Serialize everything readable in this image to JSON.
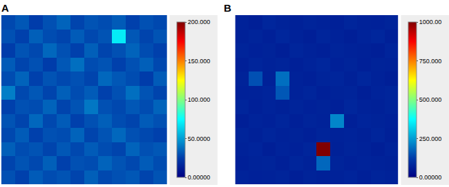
{
  "chart_data": [
    {
      "type": "heatmap",
      "title": "A",
      "tick_labels": false,
      "colorbar_range": [
        0,
        200
      ],
      "colorbar_ticks": [
        {
          "value": 0,
          "label": "0.00000"
        },
        {
          "value": 50,
          "label": "50.0000"
        },
        {
          "value": 100,
          "label": "100.000"
        },
        {
          "value": 150,
          "label": "150.000"
        },
        {
          "value": 200,
          "label": "200.000"
        }
      ],
      "cells": [
        [
          28,
          32,
          25,
          30,
          35,
          27,
          31,
          29,
          33,
          26,
          30,
          28
        ],
        [
          30,
          26,
          34,
          29,
          27,
          33,
          28,
          31,
          70,
          32,
          27,
          31
        ],
        [
          25,
          31,
          28,
          36,
          30,
          26,
          34,
          27,
          30,
          35,
          29,
          26
        ],
        [
          33,
          27,
          30,
          25,
          32,
          38,
          29,
          31,
          26,
          30,
          34,
          28
        ],
        [
          29,
          35,
          26,
          31,
          28,
          30,
          27,
          36,
          32,
          29,
          25,
          33
        ],
        [
          42,
          28,
          32,
          27,
          34,
          29,
          33,
          26,
          30,
          38,
          31,
          27
        ],
        [
          26,
          30,
          29,
          35,
          27,
          31,
          40,
          30,
          28,
          32,
          29,
          35
        ],
        [
          31,
          27,
          36,
          28,
          33,
          26,
          30,
          34,
          29,
          27,
          33,
          30
        ],
        [
          28,
          33,
          26,
          30,
          29,
          35,
          27,
          31,
          36,
          30,
          28,
          26
        ],
        [
          34,
          29,
          31,
          27,
          32,
          28,
          33,
          29,
          27,
          35,
          30,
          32
        ],
        [
          27,
          31,
          28,
          34,
          26,
          30,
          29,
          35,
          31,
          28,
          33,
          29
        ],
        [
          30,
          26,
          33,
          29,
          31,
          27,
          34,
          28,
          30,
          32,
          27,
          31
        ]
      ]
    },
    {
      "type": "heatmap",
      "title": "B",
      "tick_labels": false,
      "colorbar_range": [
        0,
        1000
      ],
      "colorbar_ticks": [
        {
          "value": 0,
          "label": "0.00000"
        },
        {
          "value": 250,
          "label": "250.000"
        },
        {
          "value": 500,
          "label": "500.000"
        },
        {
          "value": 750,
          "label": "750.000"
        },
        {
          "value": 1000,
          "label": "1000.00"
        }
      ],
      "cells": [
        [
          70,
          65,
          80,
          72,
          68,
          75,
          70,
          66,
          78,
          71,
          69,
          74
        ],
        [
          68,
          74,
          66,
          79,
          71,
          64,
          77,
          70,
          65,
          73,
          80,
          67
        ],
        [
          75,
          69,
          72,
          65,
          78,
          70,
          66,
          74,
          71,
          68,
          64,
          76
        ],
        [
          66,
          78,
          70,
          74,
          67,
          73,
          80,
          69,
          75,
          66,
          72,
          70
        ],
        [
          72,
          150,
          68,
          190,
          71,
          66,
          74,
          77,
          68,
          79,
          70,
          65
        ],
        [
          69,
          71,
          76,
          160,
          70,
          78,
          67,
          72,
          74,
          65,
          73,
          78
        ],
        [
          77,
          66,
          73,
          68,
          75,
          69,
          72,
          66,
          79,
          71,
          68,
          74
        ],
        [
          64,
          73,
          69,
          77,
          66,
          74,
          70,
          220,
          67,
          76,
          72,
          69
        ],
        [
          74,
          68,
          78,
          70,
          72,
          67,
          75,
          71,
          73,
          68,
          77,
          66
        ],
        [
          70,
          76,
          65,
          73,
          69,
          77,
          1000,
          68,
          74,
          70,
          65,
          73
        ],
        [
          67,
          72,
          74,
          66,
          78,
          70,
          180,
          75,
          69,
          73,
          71,
          68
        ],
        [
          73,
          69,
          71,
          75,
          64,
          72,
          68,
          70,
          76,
          67,
          74,
          71
        ]
      ]
    }
  ]
}
